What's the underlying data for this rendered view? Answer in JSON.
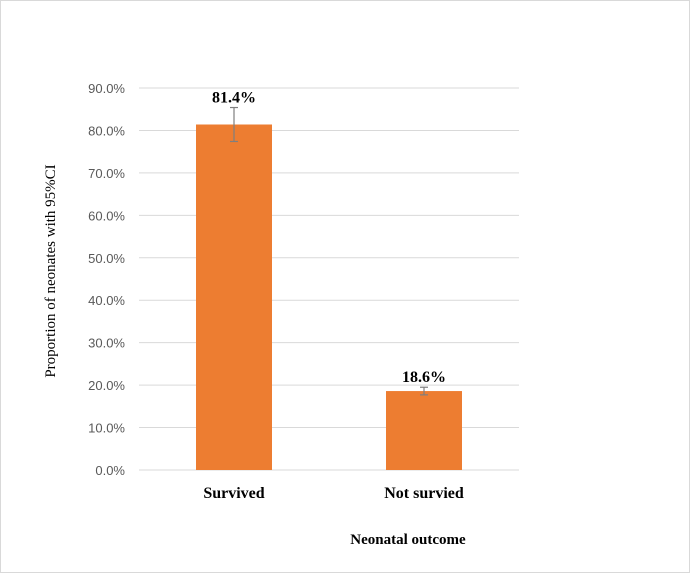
{
  "chart_data": {
    "type": "bar",
    "categories": [
      "Survived",
      "Not survied"
    ],
    "values": [
      81.4,
      18.6
    ],
    "error_bars": {
      "lower": [
        77.4,
        17.7
      ],
      "upper": [
        85.4,
        19.5
      ]
    },
    "data_labels": [
      "81.4%",
      "18.6%"
    ],
    "xlabel": "Neonatal outcome",
    "ylabel": "Proportion of neonates with 95%CI",
    "ylim": [
      0,
      90
    ],
    "yticks": [
      "0.0%",
      "10.0%",
      "20.0%",
      "30.0%",
      "40.0%",
      "50.0%",
      "60.0%",
      "70.0%",
      "80.0%",
      "90.0%"
    ],
    "grid": true,
    "legend": "none",
    "colors": {
      "bar": "#ED7D31",
      "grid": "#d9d9d9",
      "error_bar": "#7f7f7f"
    }
  }
}
